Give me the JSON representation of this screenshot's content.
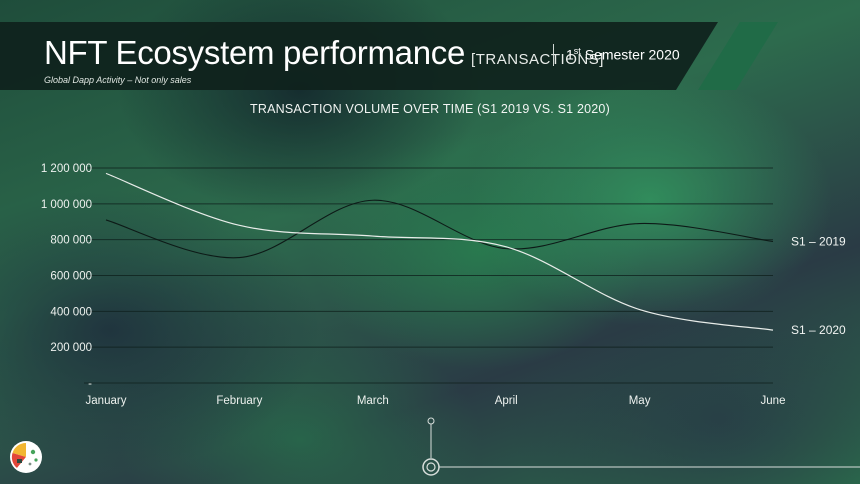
{
  "header": {
    "title": "NFT Ecosystem performance",
    "title_tag": "[TRANSACTIONS]",
    "subtitle": "Global Dapp Activity – Not only sales",
    "semester_prefix": "1",
    "semester_sup": "st",
    "semester_rest": "Semester 2020"
  },
  "colors": {
    "header_band": "#0f221c",
    "accent_green": "#1f6b47",
    "line_2019": "#0d1a17",
    "line_2020": "#e8ece9",
    "grid": "#0e1f1b"
  },
  "chart_data": {
    "type": "line",
    "title": "TRANSACTION VOLUME OVER TIME (S1 2019 VS. S1 2020)",
    "categories": [
      "January",
      "February",
      "March",
      "April",
      "May",
      "June"
    ],
    "y_ticks": [
      "-",
      "200 000",
      "400 000",
      "600 000",
      "800 000",
      "1 000 000",
      "1 200 000"
    ],
    "ylim": [
      0,
      1200000
    ],
    "grid": true,
    "series": [
      {
        "name": "S1 – 2019",
        "values": [
          910000,
          700000,
          1020000,
          750000,
          890000,
          790000
        ]
      },
      {
        "name": "S1 – 2020",
        "values": [
          1170000,
          880000,
          820000,
          760000,
          410000,
          295000
        ]
      }
    ]
  }
}
